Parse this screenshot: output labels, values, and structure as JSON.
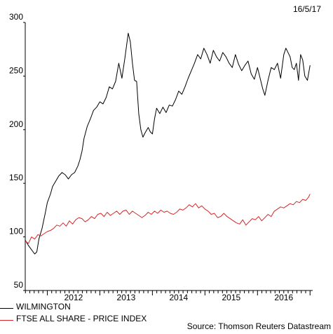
{
  "date_label": "16/5/17",
  "source": "Source: Thomson Reuters Datastream",
  "chart_data": {
    "type": "line",
    "title": "",
    "xlabel": "",
    "ylabel": "",
    "ylim": [
      50,
      300
    ],
    "yticks": [
      50,
      100,
      150,
      200,
      250,
      300
    ],
    "xlim": [
      2011.58,
      2017.05
    ],
    "xticks": [
      {
        "label": "2012",
        "value": 2012
      },
      {
        "label": "2013",
        "value": 2013
      },
      {
        "label": "2014",
        "value": 2014
      },
      {
        "label": "2015",
        "value": 2015
      },
      {
        "label": "2016",
        "value": 2016
      }
    ],
    "grid": false,
    "legend_position": "bottom-left",
    "series": [
      {
        "name": "WILMINGTON",
        "color": "#000000",
        "x": [
          2011.58,
          2011.64,
          2011.7,
          2011.76,
          2011.8,
          2011.84,
          2011.9,
          2011.96,
          2012.0,
          2012.06,
          2012.1,
          2012.16,
          2012.22,
          2012.28,
          2012.34,
          2012.4,
          2012.46,
          2012.52,
          2012.58,
          2012.62,
          2012.66,
          2012.7,
          2012.76,
          2012.82,
          2012.88,
          2012.94,
          2013.0,
          2013.06,
          2013.12,
          2013.18,
          2013.24,
          2013.3,
          2013.36,
          2013.42,
          2013.48,
          2013.54,
          2013.58,
          2013.62,
          2013.66,
          2013.7,
          2013.74,
          2013.78,
          2013.82,
          2013.86,
          2013.92,
          2013.96,
          2014.0,
          2014.04,
          2014.08,
          2014.14,
          2014.2,
          2014.26,
          2014.32,
          2014.38,
          2014.44,
          2014.5,
          2014.56,
          2014.62,
          2014.68,
          2014.74,
          2014.8,
          2014.86,
          2014.92,
          2014.98,
          2015.04,
          2015.1,
          2015.16,
          2015.22,
          2015.28,
          2015.34,
          2015.4,
          2015.46,
          2015.52,
          2015.58,
          2015.64,
          2015.7,
          2015.76,
          2015.82,
          2015.88,
          2015.94,
          2016.0,
          2016.06,
          2016.1,
          2016.14,
          2016.2,
          2016.26,
          2016.32,
          2016.38,
          2016.44,
          2016.5,
          2016.54,
          2016.58,
          2016.62,
          2016.66,
          2016.7,
          2016.74,
          2016.78,
          2016.82,
          2016.86,
          2016.9,
          2016.95,
          2017.0
        ],
        "values": [
          97,
          92,
          88,
          84,
          86,
          98,
          108,
          122,
          132,
          140,
          147,
          152,
          157,
          160,
          158,
          154,
          158,
          160,
          166,
          172,
          180,
          192,
          203,
          210,
          218,
          221,
          226,
          224,
          230,
          240,
          238,
          245,
          262,
          248,
          268,
          290,
          282,
          262,
          246,
          245,
          215,
          200,
          193,
          197,
          202,
          198,
          196,
          210,
          220,
          215,
          221,
          216,
          223,
          222,
          228,
          236,
          233,
          240,
          248,
          255,
          262,
          270,
          266,
          276,
          270,
          262,
          274,
          268,
          264,
          272,
          268,
          262,
          258,
          270,
          261,
          255,
          260,
          264,
          252,
          247,
          258,
          246,
          238,
          232,
          246,
          258,
          256,
          262,
          248,
          270,
          276,
          272,
          268,
          258,
          256,
          262,
          246,
          270,
          265,
          250,
          246,
          260
        ]
      },
      {
        "name": "FTSE ALL SHARE - PRICE INDEX",
        "color": "#d62728",
        "x": [
          2011.58,
          2011.64,
          2011.7,
          2011.76,
          2011.82,
          2011.88,
          2011.94,
          2012.0,
          2012.06,
          2012.12,
          2012.18,
          2012.24,
          2012.3,
          2012.36,
          2012.42,
          2012.48,
          2012.54,
          2012.6,
          2012.66,
          2012.72,
          2012.78,
          2012.84,
          2012.9,
          2012.96,
          2013.02,
          2013.08,
          2013.14,
          2013.2,
          2013.26,
          2013.32,
          2013.38,
          2013.44,
          2013.5,
          2013.56,
          2013.62,
          2013.68,
          2013.74,
          2013.8,
          2013.86,
          2013.92,
          2013.98,
          2014.04,
          2014.1,
          2014.16,
          2014.22,
          2014.28,
          2014.34,
          2014.4,
          2014.46,
          2014.52,
          2014.58,
          2014.64,
          2014.7,
          2014.76,
          2014.82,
          2014.88,
          2014.94,
          2015.0,
          2015.06,
          2015.12,
          2015.18,
          2015.24,
          2015.3,
          2015.36,
          2015.42,
          2015.48,
          2015.54,
          2015.6,
          2015.66,
          2015.72,
          2015.78,
          2015.84,
          2015.9,
          2015.96,
          2016.02,
          2016.08,
          2016.14,
          2016.2,
          2016.26,
          2016.32,
          2016.38,
          2016.44,
          2016.5,
          2016.56,
          2016.62,
          2016.68,
          2016.74,
          2016.8,
          2016.86,
          2016.92,
          2016.97,
          2017.0
        ],
        "values": [
          96,
          94,
          100,
          98,
          102,
          101,
          103,
          105,
          106,
          108,
          111,
          110,
          113,
          110,
          115,
          112,
          116,
          118,
          117,
          114,
          116,
          119,
          117,
          121,
          122,
          119,
          123,
          120,
          122,
          124,
          121,
          124,
          125,
          121,
          124,
          122,
          120,
          118,
          120,
          123,
          121,
          124,
          122,
          125,
          123,
          124,
          122,
          121,
          123,
          126,
          125,
          127,
          130,
          128,
          131,
          127,
          129,
          126,
          124,
          121,
          122,
          118,
          119,
          122,
          119,
          117,
          115,
          113,
          112,
          116,
          111,
          114,
          117,
          116,
          119,
          115,
          118,
          121,
          119,
          124,
          126,
          128,
          127,
          129,
          131,
          130,
          133,
          132,
          135,
          134,
          137,
          140
        ]
      }
    ]
  }
}
